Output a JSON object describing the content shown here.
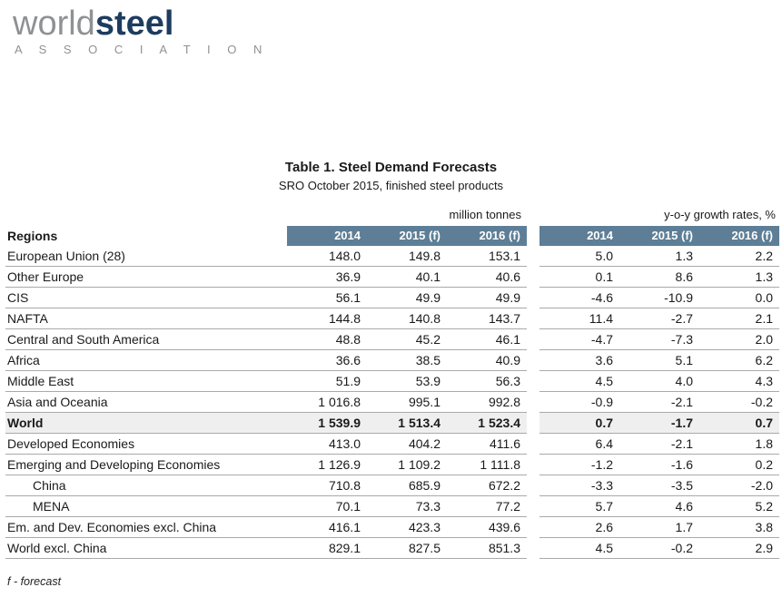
{
  "logo": {
    "world": "world",
    "steel": "steel",
    "association": "A S S O C I A T I O N"
  },
  "title": "Table 1. Steel Demand Forecasts",
  "subtitle": "SRO October 2015, finished steel products",
  "table": {
    "group_labels": {
      "tonnes": "million tonnes",
      "growth": "y-o-y growth rates, %"
    },
    "regions_header": "Regions",
    "column_headers": [
      "2014",
      "2015 (f)",
      "2016 (f)"
    ],
    "rows": [
      {
        "name": "European Union (28)",
        "tonnes": [
          "148.0",
          "149.8",
          "153.1"
        ],
        "growth": [
          "5.0",
          "1.3",
          "2.2"
        ],
        "bold": false,
        "indent": false,
        "shaded": false
      },
      {
        "name": "Other Europe",
        "tonnes": [
          "36.9",
          "40.1",
          "40.6"
        ],
        "growth": [
          "0.1",
          "8.6",
          "1.3"
        ],
        "bold": false,
        "indent": false,
        "shaded": false
      },
      {
        "name": "CIS",
        "tonnes": [
          "56.1",
          "49.9",
          "49.9"
        ],
        "growth": [
          "-4.6",
          "-10.9",
          "0.0"
        ],
        "bold": false,
        "indent": false,
        "shaded": false
      },
      {
        "name": "NAFTA",
        "tonnes": [
          "144.8",
          "140.8",
          "143.7"
        ],
        "growth": [
          "11.4",
          "-2.7",
          "2.1"
        ],
        "bold": false,
        "indent": false,
        "shaded": false
      },
      {
        "name": "Central and South America",
        "tonnes": [
          "48.8",
          "45.2",
          "46.1"
        ],
        "growth": [
          "-4.7",
          "-7.3",
          "2.0"
        ],
        "bold": false,
        "indent": false,
        "shaded": false
      },
      {
        "name": "Africa",
        "tonnes": [
          "36.6",
          "38.5",
          "40.9"
        ],
        "growth": [
          "3.6",
          "5.1",
          "6.2"
        ],
        "bold": false,
        "indent": false,
        "shaded": false
      },
      {
        "name": "Middle East",
        "tonnes": [
          "51.9",
          "53.9",
          "56.3"
        ],
        "growth": [
          "4.5",
          "4.0",
          "4.3"
        ],
        "bold": false,
        "indent": false,
        "shaded": false
      },
      {
        "name": "Asia and Oceania",
        "tonnes": [
          "1 016.8",
          "995.1",
          "992.8"
        ],
        "growth": [
          "-0.9",
          "-2.1",
          "-0.2"
        ],
        "bold": false,
        "indent": false,
        "shaded": false
      },
      {
        "name": "World",
        "tonnes": [
          "1 539.9",
          "1 513.4",
          "1 523.4"
        ],
        "growth": [
          "0.7",
          "-1.7",
          "0.7"
        ],
        "bold": true,
        "indent": false,
        "shaded": true
      },
      {
        "name": "Developed Economies",
        "tonnes": [
          "413.0",
          "404.2",
          "411.6"
        ],
        "growth": [
          "6.4",
          "-2.1",
          "1.8"
        ],
        "bold": false,
        "indent": false,
        "shaded": false
      },
      {
        "name": "Emerging and Developing Economies",
        "tonnes": [
          "1 126.9",
          "1 109.2",
          "1 111.8"
        ],
        "growth": [
          "-1.2",
          "-1.6",
          "0.2"
        ],
        "bold": false,
        "indent": false,
        "shaded": false
      },
      {
        "name": "China",
        "tonnes": [
          "710.8",
          "685.9",
          "672.2"
        ],
        "growth": [
          "-3.3",
          "-3.5",
          "-2.0"
        ],
        "bold": false,
        "indent": true,
        "shaded": false
      },
      {
        "name": "MENA",
        "tonnes": [
          "70.1",
          "73.3",
          "77.2"
        ],
        "growth": [
          "5.7",
          "4.6",
          "5.2"
        ],
        "bold": false,
        "indent": true,
        "shaded": false
      },
      {
        "name": "Em. and Dev. Economies excl. China",
        "tonnes": [
          "416.1",
          "423.3",
          "439.6"
        ],
        "growth": [
          "2.6",
          "1.7",
          "3.8"
        ],
        "bold": false,
        "indent": false,
        "shaded": false
      },
      {
        "name": "World excl. China",
        "tonnes": [
          "829.1",
          "827.5",
          "851.3"
        ],
        "growth": [
          "4.5",
          "-0.2",
          "2.9"
        ],
        "bold": false,
        "indent": false,
        "shaded": false
      }
    ]
  },
  "footnote": "f - forecast",
  "colors": {
    "header_bg": "#5d7e96",
    "logo_steel": "#1e3c5f",
    "logo_gray": "#8f9193"
  }
}
